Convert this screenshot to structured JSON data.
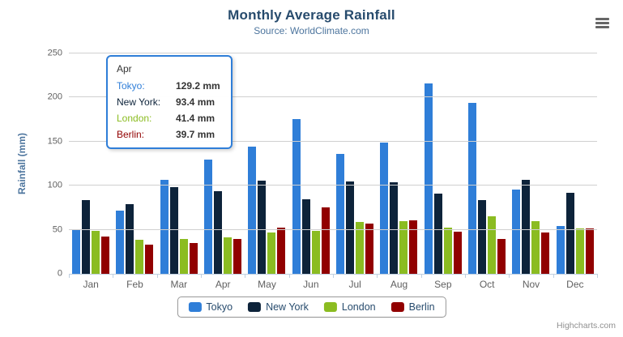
{
  "header": {
    "title": "Monthly Average Rainfall",
    "subtitle": "Source: WorldClimate.com"
  },
  "chart_data": {
    "type": "bar",
    "title": "Monthly Average Rainfall",
    "subtitle": "Source: WorldClimate.com",
    "categories": [
      "Jan",
      "Feb",
      "Mar",
      "Apr",
      "May",
      "Jun",
      "Jul",
      "Aug",
      "Sep",
      "Oct",
      "Nov",
      "Dec"
    ],
    "series": [
      {
        "name": "Tokyo",
        "color": "#2f7ed8",
        "values": [
          49.9,
          71.5,
          106.4,
          129.2,
          144.0,
          176.0,
          135.6,
          148.5,
          216.4,
          194.1,
          95.6,
          54.4
        ]
      },
      {
        "name": "New York",
        "color": "#0d233a",
        "values": [
          83.6,
          78.8,
          98.5,
          93.4,
          106.0,
          84.5,
          105.0,
          104.3,
          91.2,
          83.5,
          106.6,
          92.3
        ]
      },
      {
        "name": "London",
        "color": "#8bbc21",
        "values": [
          48.9,
          38.8,
          39.3,
          41.4,
          47.0,
          48.3,
          59.0,
          59.6,
          52.4,
          65.2,
          59.3,
          51.2
        ]
      },
      {
        "name": "Berlin",
        "color": "#910000",
        "values": [
          42.4,
          33.2,
          34.5,
          39.7,
          52.6,
          75.5,
          57.4,
          60.4,
          47.6,
          39.1,
          46.8,
          51.1
        ]
      }
    ],
    "xlabel": "",
    "ylabel": "Rainfall (mm)",
    "ylim": [
      0,
      250
    ],
    "yticks": [
      0,
      50,
      100,
      150,
      200,
      250
    ],
    "grid": true,
    "legend_position": "bottom"
  },
  "tooltip": {
    "category": "Apr",
    "rows": [
      {
        "label": "Tokyo:",
        "value": "129.2 mm",
        "color": "#2f7ed8"
      },
      {
        "label": "New York:",
        "value": "93.4 mm",
        "color": "#0d233a"
      },
      {
        "label": "London:",
        "value": "41.4 mm",
        "color": "#8bbc21"
      },
      {
        "label": "Berlin:",
        "value": "39.7 mm",
        "color": "#910000"
      }
    ]
  },
  "credits": {
    "label": "Highcharts.com"
  },
  "colors": {
    "title": "#274b6d",
    "subtitle": "#4d759e",
    "axis_label": "#606060",
    "axis_line": "#c0d0e0",
    "gridline": "#d0d0d0",
    "legend_border": "#999999",
    "legend_text": "#274b6d",
    "tooltip_border": "#2f7ed8",
    "credits": "#909090"
  }
}
